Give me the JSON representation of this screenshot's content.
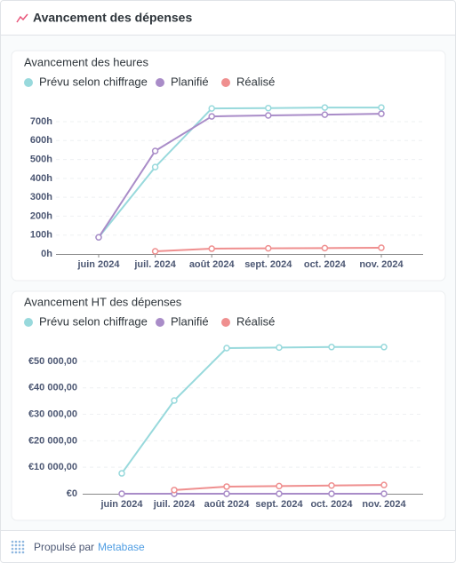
{
  "header": {
    "title": "Avancement des dépenses"
  },
  "chart_data": [
    {
      "type": "line",
      "title": "Avancement des heures",
      "categories": [
        "juin 2024",
        "juil. 2024",
        "août 2024",
        "sept. 2024",
        "oct. 2024",
        "nov. 2024"
      ],
      "series": [
        {
          "name": "Prévu selon chiffrage",
          "color": "#98d9dc",
          "values": [
            88,
            460,
            770,
            772,
            775,
            775
          ]
        },
        {
          "name": "Planifié",
          "color": "#a98cc8",
          "values": [
            88,
            545,
            728,
            733,
            737,
            742
          ]
        },
        {
          "name": "Réalisé",
          "color": "#ef8f8f",
          "values": [
            null,
            14,
            28,
            30,
            31,
            33
          ]
        }
      ],
      "ylim": [
        0,
        780
      ],
      "yticks": [
        {
          "value": 0,
          "label": "0h"
        },
        {
          "value": 100,
          "label": "100h"
        },
        {
          "value": 200,
          "label": "200h"
        },
        {
          "value": 300,
          "label": "300h"
        },
        {
          "value": 400,
          "label": "400h"
        },
        {
          "value": 500,
          "label": "500h"
        },
        {
          "value": 600,
          "label": "600h"
        },
        {
          "value": 700,
          "label": "700h"
        }
      ],
      "grid": true
    },
    {
      "type": "line",
      "title": "Avancement HT des dépenses",
      "categories": [
        "juin 2024",
        "juil. 2024",
        "août 2024",
        "sept. 2024",
        "oct. 2024",
        "nov. 2024"
      ],
      "series": [
        {
          "name": "Prévu selon chiffrage",
          "color": "#98d9dc",
          "values": [
            7700,
            35200,
            55000,
            55200,
            55400,
            55400
          ]
        },
        {
          "name": "Planifié",
          "color": "#a98cc8",
          "values": [
            0,
            0,
            0,
            0,
            0,
            0
          ]
        },
        {
          "name": "Réalisé",
          "color": "#ef8f8f",
          "values": [
            null,
            1400,
            2700,
            2900,
            3100,
            3300
          ]
        }
      ],
      "ylim": [
        0,
        56000
      ],
      "yticks": [
        {
          "value": 0,
          "label": "€0"
        },
        {
          "value": 10000,
          "label": "€10 000,00"
        },
        {
          "value": 20000,
          "label": "€20 000,00"
        },
        {
          "value": 30000,
          "label": "€30 000,00"
        },
        {
          "value": 40000,
          "label": "€40 000,00"
        },
        {
          "value": 50000,
          "label": "€50 000,00"
        }
      ],
      "grid": true
    }
  ],
  "footer": {
    "prefix": "Propulsé par",
    "link": "Metabase"
  }
}
